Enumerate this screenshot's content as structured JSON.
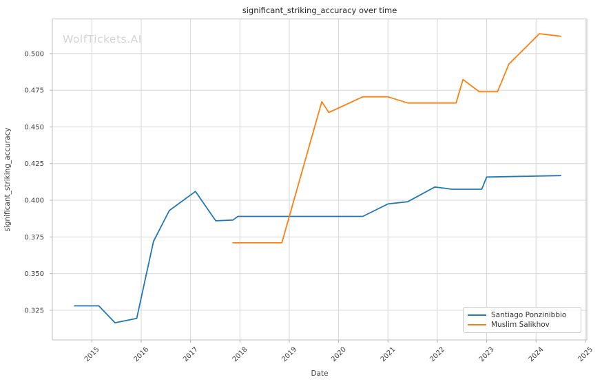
{
  "watermark": "WolfTickets.AI",
  "chart_data": {
    "type": "line",
    "title": "significant_striking_accuracy over time",
    "xlabel": "Date",
    "ylabel": "significant_striking_accuracy",
    "xlim": [
      2014.2,
      2025.03
    ],
    "ylim": [
      0.3048,
      0.5236
    ],
    "x_ticks": [
      2015,
      2016,
      2017,
      2018,
      2019,
      2020,
      2021,
      2022,
      2023,
      2024,
      2025
    ],
    "y_ticks": [
      0.325,
      0.35,
      0.375,
      0.4,
      0.425,
      0.45,
      0.475,
      0.5
    ],
    "grid": true,
    "legend_position": "lower right",
    "colors": {
      "grid": "#d6d6d6",
      "spine": "#c8c8c8",
      "tick_mark": "#b3b3b3",
      "tick_text": "#3d3d3d",
      "title_text": "#262626"
    },
    "series": [
      {
        "name": "Santiago Ponzinibbio",
        "color": "#1f77b4",
        "points": [
          [
            2014.65,
            0.328
          ],
          [
            2015.14,
            0.328
          ],
          [
            2015.47,
            0.3165
          ],
          [
            2015.91,
            0.3195
          ],
          [
            2016.25,
            0.372
          ],
          [
            2016.57,
            0.393
          ],
          [
            2017.1,
            0.406
          ],
          [
            2017.51,
            0.386
          ],
          [
            2017.86,
            0.3865
          ],
          [
            2017.96,
            0.389
          ],
          [
            2020.49,
            0.389
          ],
          [
            2021.0,
            0.3975
          ],
          [
            2021.4,
            0.399
          ],
          [
            2021.95,
            0.409
          ],
          [
            2022.3,
            0.4075
          ],
          [
            2022.9,
            0.4075
          ],
          [
            2023.0,
            0.4158
          ],
          [
            2024.5,
            0.4168
          ]
        ]
      },
      {
        "name": "Muslim Salikhov",
        "color": "#ff7f0e",
        "points": [
          [
            2017.86,
            0.371
          ],
          [
            2018.85,
            0.371
          ],
          [
            2019.66,
            0.4672
          ],
          [
            2019.8,
            0.4598
          ],
          [
            2020.49,
            0.4705
          ],
          [
            2021.0,
            0.4705
          ],
          [
            2021.4,
            0.4663
          ],
          [
            2022.38,
            0.4663
          ],
          [
            2022.52,
            0.4823
          ],
          [
            2022.85,
            0.474
          ],
          [
            2023.22,
            0.474
          ],
          [
            2023.45,
            0.4928
          ],
          [
            2024.07,
            0.5135
          ],
          [
            2024.5,
            0.5118
          ]
        ]
      }
    ]
  }
}
